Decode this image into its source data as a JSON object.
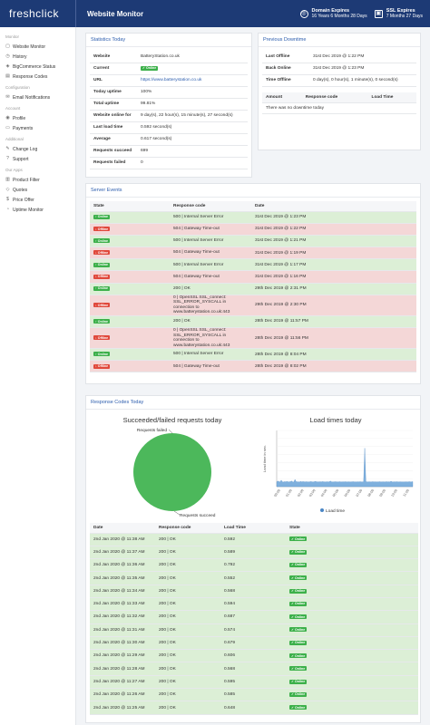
{
  "header": {
    "brand": "freshclick",
    "title": "Website Monitor",
    "domain_label": "Domain Expires",
    "domain_value": "16 Years 6 Months 28 Days",
    "ssl_label": "SSL Expires",
    "ssl_value": "7 Months 27 Days"
  },
  "sidebar": {
    "sections": [
      {
        "title": "Monitor",
        "items": [
          "Website Monitor",
          "History",
          "BigCommerce Status",
          "Response Codes"
        ]
      },
      {
        "title": "Configuration",
        "items": [
          "Email Notifications"
        ]
      },
      {
        "title": "Account",
        "items": [
          "Profile",
          "Payments"
        ]
      },
      {
        "title": "Additional",
        "items": [
          "Change Log",
          "Support"
        ]
      },
      {
        "title": "Our Apps",
        "items": [
          "Product Filter",
          "Quotes",
          "Price Offer",
          "Uptime Monitor"
        ]
      }
    ]
  },
  "stats": {
    "title": "Statistics Today",
    "rows": [
      {
        "k": "Website",
        "v": "BatteryStation.co.uk"
      },
      {
        "k": "Current",
        "v": "Online",
        "badge": "on"
      },
      {
        "k": "URL",
        "v": "https://www.batterystation.co.uk",
        "link": true
      },
      {
        "k": "Today uptime",
        "v": "100%"
      },
      {
        "k": "Total uptime",
        "v": "99.81%"
      },
      {
        "k": "Website online for",
        "v": "9 day(s), 22 hour(s), 15 minute(s), 27 second(s)"
      },
      {
        "k": "Last load time",
        "v": "0.592 second(s)"
      },
      {
        "k": "Average",
        "v": "0.617 second(s)"
      },
      {
        "k": "Requests succeed",
        "v": "699"
      },
      {
        "k": "Requests failed",
        "v": "0"
      }
    ]
  },
  "downtime": {
    "title": "Previous Downtime",
    "rows": [
      {
        "k": "Last Offline",
        "v": "31st Dec 2019 @ 1:22 PM"
      },
      {
        "k": "Back Online",
        "v": "31st Dec 2019 @ 1:23 PM"
      },
      {
        "k": "Time Offline",
        "v": "0 day(s), 0 hour(s), 1 minute(s), 0 second(s)"
      }
    ],
    "headers": [
      "Amount",
      "Response code",
      "Load Time"
    ],
    "empty": "There was no downtime today"
  },
  "events": {
    "title": "Server Events",
    "headers": [
      "State",
      "Response code",
      "Date"
    ],
    "rows": [
      {
        "s": "on",
        "state": "Online",
        "code": "500 | Internal Server Error",
        "date": "31st Dec 2019 @ 1:23 PM"
      },
      {
        "s": "off",
        "state": "Offline",
        "code": "504 | Gateway Time-out",
        "date": "31st Dec 2019 @ 1:22 PM"
      },
      {
        "s": "on",
        "state": "Online",
        "code": "500 | Internal Server Error",
        "date": "31st Dec 2019 @ 1:21 PM"
      },
      {
        "s": "off",
        "state": "Offline",
        "code": "504 | Gateway Time-out",
        "date": "31st Dec 2019 @ 1:19 PM"
      },
      {
        "s": "on",
        "state": "Online",
        "code": "500 | Internal Server Error",
        "date": "31st Dec 2019 @ 1:17 PM"
      },
      {
        "s": "off",
        "state": "Offline",
        "code": "504 | Gateway Time-out",
        "date": "31st Dec 2019 @ 1:16 PM"
      },
      {
        "s": "on",
        "state": "Online",
        "code": "200 | OK",
        "date": "29th Dec 2019 @ 2:31 PM"
      },
      {
        "s": "off",
        "state": "Offline",
        "code": "0 | OpenSSL SSL_connect: SSL_ERROR_SYSCALL in connection to www.batterystation.co.uk:443",
        "date": "29th Dec 2019 @ 2:30 PM"
      },
      {
        "s": "on",
        "state": "Online",
        "code": "200 | OK",
        "date": "28th Dec 2019 @ 11:57 PM"
      },
      {
        "s": "off",
        "state": "Offline",
        "code": "0 | OpenSSL SSL_connect: SSL_ERROR_SYSCALL in connection to www.batterystation.co.uk:443",
        "date": "28th Dec 2019 @ 11:56 PM"
      },
      {
        "s": "on",
        "state": "Online",
        "code": "500 | Internal Server Error",
        "date": "28th Dec 2019 @ 8:04 PM"
      },
      {
        "s": "off",
        "state": "Offline",
        "code": "504 | Gateway Time-out",
        "date": "28th Dec 2019 @ 8:02 PM"
      }
    ]
  },
  "codes": {
    "title": "Response Codes Today",
    "pie_title": "Succeeded/failed requests today",
    "pie_label_failed": "Requests failed",
    "pie_label_succeed": "Requests succeed",
    "line_title": "Load times today",
    "y_label": "Load time in sec.",
    "legend": "Load time",
    "headers": [
      "Date",
      "Response code",
      "Load Time",
      "State"
    ],
    "rows": [
      {
        "date": "2nd Jan 2020 @ 11:38 AM",
        "code": "200 | OK",
        "load": "0.592",
        "state": "Online"
      },
      {
        "date": "2nd Jan 2020 @ 11:37 AM",
        "code": "200 | OK",
        "load": "0.589",
        "state": "Online"
      },
      {
        "date": "2nd Jan 2020 @ 11:36 AM",
        "code": "200 | OK",
        "load": "0.792",
        "state": "Online"
      },
      {
        "date": "2nd Jan 2020 @ 11:35 AM",
        "code": "200 | OK",
        "load": "0.552",
        "state": "Online"
      },
      {
        "date": "2nd Jan 2020 @ 11:34 AM",
        "code": "200 | OK",
        "load": "0.568",
        "state": "Online"
      },
      {
        "date": "2nd Jan 2020 @ 11:33 AM",
        "code": "200 | OK",
        "load": "0.594",
        "state": "Online"
      },
      {
        "date": "2nd Jan 2020 @ 11:32 AM",
        "code": "200 | OK",
        "load": "0.687",
        "state": "Online"
      },
      {
        "date": "2nd Jan 2020 @ 11:31 AM",
        "code": "200 | OK",
        "load": "0.574",
        "state": "Online"
      },
      {
        "date": "2nd Jan 2020 @ 11:30 AM",
        "code": "200 | OK",
        "load": "0.679",
        "state": "Online"
      },
      {
        "date": "2nd Jan 2020 @ 11:29 AM",
        "code": "200 | OK",
        "load": "0.606",
        "state": "Online"
      },
      {
        "date": "2nd Jan 2020 @ 11:28 AM",
        "code": "200 | OK",
        "load": "0.568",
        "state": "Online"
      },
      {
        "date": "2nd Jan 2020 @ 11:27 AM",
        "code": "200 | OK",
        "load": "0.595",
        "state": "Online"
      },
      {
        "date": "2nd Jan 2020 @ 11:26 AM",
        "code": "200 | OK",
        "load": "0.585",
        "state": "Online"
      },
      {
        "date": "2nd Jan 2020 @ 11:25 AM",
        "code": "200 | OK",
        "load": "0.648",
        "state": "Online"
      }
    ]
  },
  "colors": {
    "header": "#1d3a75",
    "online": "#3cb04a",
    "offline": "#e0483b",
    "pie": "#4cb85b",
    "line": "#7fb0dd"
  },
  "chart_data": [
    {
      "type": "pie",
      "title": "Succeeded/failed requests today",
      "labels": [
        "Requests succeed",
        "Requests failed"
      ],
      "values": [
        699,
        0
      ]
    },
    {
      "type": "area",
      "title": "Load times today",
      "ylabel": "Load time in sec.",
      "series": [
        {
          "name": "Load time",
          "values": [
            0.6,
            0.7,
            0.62,
            0.59,
            0.81,
            0.6,
            0.58,
            0.63,
            0.6,
            0.66,
            0.59,
            0.61,
            0.62,
            0.7,
            0.6,
            0.58,
            0.9,
            0.62,
            0.61,
            0.6,
            0.59,
            0.65,
            0.6,
            0.63,
            0.61,
            0.6,
            0.62,
            0.59,
            0.6,
            0.61,
            0.64,
            0.6,
            0.59,
            0.62,
            0.66,
            0.6,
            0.61,
            0.6,
            0.62,
            0.6,
            0.63,
            0.61,
            0.6,
            0.59,
            0.62,
            0.6,
            0.61,
            0.7,
            0.6,
            0.6,
            0.6,
            0.62,
            0.61,
            0.6,
            0.59,
            0.62,
            0.6,
            0.6,
            0.61,
            0.6,
            0.62,
            0.6,
            0.6,
            0.61,
            0.6,
            0.6,
            0.61,
            0.62,
            0.6,
            0.6,
            0.6,
            0.61,
            0.6,
            0.62,
            0.6,
            0.6,
            0.6,
            4.8,
            0.62,
            0.6,
            0.6,
            0.61,
            0.6,
            0.6,
            0.62,
            0.6,
            0.61,
            0.6,
            0.6,
            0.6,
            0.62,
            0.6,
            0.6,
            0.61,
            0.6,
            0.6,
            0.62,
            0.6,
            0.61,
            0.6,
            0.68,
            0.6,
            0.6,
            0.61,
            0.6,
            0.62,
            0.6,
            0.6,
            0.61,
            0.6,
            0.6,
            0.59,
            0.6,
            0.61,
            0.6,
            0.6,
            0.62,
            0.6,
            0.6,
            0.63
          ]
        }
      ],
      "x_ticks": [
        "00:00",
        "01:00",
        "02:00",
        "03:00",
        "04:00",
        "05:00",
        "06:00",
        "07:00",
        "08:00",
        "09:00",
        "10:00",
        "11:00"
      ],
      "ylim": [
        0,
        7
      ]
    }
  ]
}
